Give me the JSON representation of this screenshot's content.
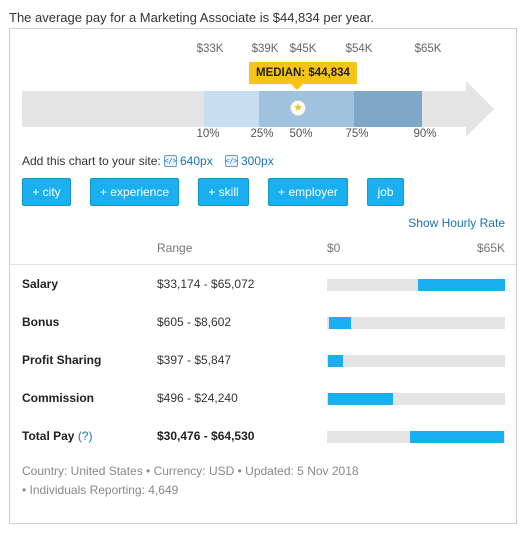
{
  "summary": "The average pay for a Marketing Associate is $44,834 per year.",
  "range_chart": {
    "top_labels": [
      "$33K",
      "$39K",
      "$45K",
      "$54K",
      "$65K"
    ],
    "median_label": "MEDIAN: $44,834",
    "percentiles": [
      "10%",
      "25%",
      "50%",
      "75%",
      "90%"
    ],
    "colors": {
      "p10_25": "#c6def0",
      "p25_75": "#9fc2de",
      "p75_90": "#7fa7c8",
      "track": "#e4e4e4",
      "median_badge": "#f6c317"
    },
    "median_icon": "star-icon"
  },
  "add_chart": {
    "label": "Add this chart to your site:",
    "links": [
      {
        "label": "640px",
        "icon": "embed-code-icon"
      },
      {
        "label": "300px",
        "icon": "embed-code-icon"
      }
    ]
  },
  "filters": [
    "+ city",
    "+ experience",
    "+ skill",
    "+ employer",
    "job"
  ],
  "hourly_link": "Show Hourly Rate",
  "table": {
    "headers": {
      "range": "Range",
      "min": "$0",
      "max": "$65K"
    },
    "scale_max": 65000,
    "rows": [
      {
        "label": "Salary",
        "range": "$33,174 - $65,072",
        "low": 33174,
        "high": 65072,
        "bold_range": false,
        "help": ""
      },
      {
        "label": "Bonus",
        "range": "$605 - $8,602",
        "low": 605,
        "high": 8602,
        "bold_range": false,
        "help": ""
      },
      {
        "label": "Profit Sharing",
        "range": "$397 - $5,847",
        "low": 397,
        "high": 5847,
        "bold_range": false,
        "help": ""
      },
      {
        "label": "Commission",
        "range": "$496 - $24,240",
        "low": 496,
        "high": 24240,
        "bold_range": false,
        "help": ""
      },
      {
        "label": "Total Pay",
        "range": "$30,476 - $64,530",
        "low": 30476,
        "high": 64530,
        "bold_range": true,
        "help": "(?)"
      }
    ]
  },
  "footer": {
    "line1": "Country: United States • Currency: USD • Updated: 5 Nov 2018",
    "line2": "• Individuals Reporting: 4,649"
  },
  "accent_color": "#1ab0f0",
  "link_color": "#1b72b8"
}
